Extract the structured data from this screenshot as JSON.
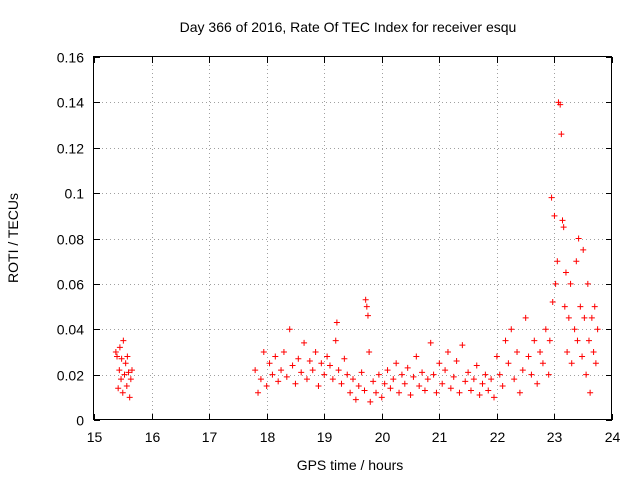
{
  "chart_data": {
    "type": "scatter",
    "title": "Day 366 of 2016, Rate Of TEC Index for receiver esqu",
    "xlabel": "GPS time / hours",
    "ylabel": "ROTI / TECUs",
    "xlim": [
      15,
      24
    ],
    "ylim": [
      0,
      0.16
    ],
    "x_ticks": [
      "15",
      "16",
      "17",
      "18",
      "19",
      "20",
      "21",
      "22",
      "23",
      "24"
    ],
    "y_ticks": [
      "0",
      "0.02",
      "0.04",
      "0.06",
      "0.08",
      "0.1",
      "0.12",
      "0.14",
      "0.16"
    ],
    "grid": true,
    "marker": "+",
    "color": "#ff0000",
    "series": [
      {
        "name": "ROTI",
        "points": [
          [
            15.38,
            0.03
          ],
          [
            15.4,
            0.028
          ],
          [
            15.42,
            0.014
          ],
          [
            15.44,
            0.022
          ],
          [
            15.45,
            0.032
          ],
          [
            15.47,
            0.018
          ],
          [
            15.48,
            0.027
          ],
          [
            15.5,
            0.012
          ],
          [
            15.51,
            0.035
          ],
          [
            15.53,
            0.02
          ],
          [
            15.55,
            0.025
          ],
          [
            15.57,
            0.015
          ],
          [
            15.58,
            0.028
          ],
          [
            15.6,
            0.021
          ],
          [
            15.62,
            0.01
          ],
          [
            15.64,
            0.018
          ],
          [
            15.66,
            0.022
          ],
          [
            17.8,
            0.022
          ],
          [
            17.85,
            0.012
          ],
          [
            17.9,
            0.018
          ],
          [
            17.95,
            0.03
          ],
          [
            18.0,
            0.015
          ],
          [
            18.05,
            0.025
          ],
          [
            18.1,
            0.02
          ],
          [
            18.15,
            0.028
          ],
          [
            18.2,
            0.017
          ],
          [
            18.25,
            0.022
          ],
          [
            18.3,
            0.03
          ],
          [
            18.35,
            0.019
          ],
          [
            18.4,
            0.04
          ],
          [
            18.45,
            0.024
          ],
          [
            18.5,
            0.016
          ],
          [
            18.55,
            0.027
          ],
          [
            18.6,
            0.021
          ],
          [
            18.65,
            0.034
          ],
          [
            18.7,
            0.018
          ],
          [
            18.75,
            0.026
          ],
          [
            18.8,
            0.022
          ],
          [
            18.85,
            0.03
          ],
          [
            18.9,
            0.015
          ],
          [
            18.95,
            0.025
          ],
          [
            19.0,
            0.02
          ],
          [
            19.05,
            0.028
          ],
          [
            19.1,
            0.024
          ],
          [
            19.15,
            0.018
          ],
          [
            19.2,
            0.035
          ],
          [
            19.22,
            0.043
          ],
          [
            19.25,
            0.022
          ],
          [
            19.3,
            0.016
          ],
          [
            19.35,
            0.027
          ],
          [
            19.4,
            0.02
          ],
          [
            19.45,
            0.012
          ],
          [
            19.5,
            0.018
          ],
          [
            19.55,
            0.009
          ],
          [
            19.6,
            0.015
          ],
          [
            19.65,
            0.021
          ],
          [
            19.7,
            0.013
          ],
          [
            19.72,
            0.053
          ],
          [
            19.74,
            0.05
          ],
          [
            19.76,
            0.046
          ],
          [
            19.78,
            0.03
          ],
          [
            19.8,
            0.008
          ],
          [
            19.85,
            0.017
          ],
          [
            19.9,
            0.012
          ],
          [
            19.95,
            0.02
          ],
          [
            20.0,
            0.01
          ],
          [
            20.05,
            0.016
          ],
          [
            20.1,
            0.022
          ],
          [
            20.15,
            0.014
          ],
          [
            20.2,
            0.018
          ],
          [
            20.25,
            0.025
          ],
          [
            20.3,
            0.012
          ],
          [
            20.35,
            0.02
          ],
          [
            20.4,
            0.016
          ],
          [
            20.45,
            0.023
          ],
          [
            20.5,
            0.011
          ],
          [
            20.55,
            0.019
          ],
          [
            20.6,
            0.028
          ],
          [
            20.65,
            0.015
          ],
          [
            20.7,
            0.021
          ],
          [
            20.75,
            0.013
          ],
          [
            20.8,
            0.018
          ],
          [
            20.85,
            0.034
          ],
          [
            20.9,
            0.02
          ],
          [
            20.95,
            0.012
          ],
          [
            21.0,
            0.025
          ],
          [
            21.05,
            0.016
          ],
          [
            21.1,
            0.022
          ],
          [
            21.15,
            0.03
          ],
          [
            21.2,
            0.014
          ],
          [
            21.25,
            0.019
          ],
          [
            21.3,
            0.026
          ],
          [
            21.35,
            0.012
          ],
          [
            21.4,
            0.033
          ],
          [
            21.45,
            0.017
          ],
          [
            21.5,
            0.021
          ],
          [
            21.55,
            0.013
          ],
          [
            21.6,
            0.018
          ],
          [
            21.65,
            0.024
          ],
          [
            21.7,
            0.011
          ],
          [
            21.75,
            0.016
          ],
          [
            21.8,
            0.02
          ],
          [
            21.85,
            0.013
          ],
          [
            21.9,
            0.018
          ],
          [
            21.95,
            0.01
          ],
          [
            22.0,
            0.028
          ],
          [
            22.05,
            0.02
          ],
          [
            22.1,
            0.015
          ],
          [
            22.15,
            0.035
          ],
          [
            22.2,
            0.025
          ],
          [
            22.25,
            0.04
          ],
          [
            22.3,
            0.018
          ],
          [
            22.35,
            0.03
          ],
          [
            22.4,
            0.012
          ],
          [
            22.45,
            0.022
          ],
          [
            22.5,
            0.045
          ],
          [
            22.55,
            0.028
          ],
          [
            22.6,
            0.02
          ],
          [
            22.65,
            0.035
          ],
          [
            22.7,
            0.016
          ],
          [
            22.75,
            0.03
          ],
          [
            22.8,
            0.025
          ],
          [
            22.85,
            0.04
          ],
          [
            22.9,
            0.02
          ],
          [
            22.92,
            0.035
          ],
          [
            22.95,
            0.098
          ],
          [
            22.97,
            0.052
          ],
          [
            23.0,
            0.09
          ],
          [
            23.02,
            0.06
          ],
          [
            23.05,
            0.07
          ],
          [
            23.07,
            0.14
          ],
          [
            23.1,
            0.139
          ],
          [
            23.12,
            0.126
          ],
          [
            23.14,
            0.088
          ],
          [
            23.16,
            0.085
          ],
          [
            23.18,
            0.05
          ],
          [
            23.2,
            0.065
          ],
          [
            23.22,
            0.03
          ],
          [
            23.25,
            0.045
          ],
          [
            23.28,
            0.06
          ],
          [
            23.3,
            0.025
          ],
          [
            23.35,
            0.04
          ],
          [
            23.38,
            0.07
          ],
          [
            23.4,
            0.035
          ],
          [
            23.42,
            0.08
          ],
          [
            23.45,
            0.05
          ],
          [
            23.48,
            0.028
          ],
          [
            23.5,
            0.075
          ],
          [
            23.52,
            0.045
          ],
          [
            23.55,
            0.02
          ],
          [
            23.58,
            0.06
          ],
          [
            23.6,
            0.035
          ],
          [
            23.62,
            0.012
          ],
          [
            23.65,
            0.045
          ],
          [
            23.68,
            0.03
          ],
          [
            23.7,
            0.05
          ],
          [
            23.72,
            0.025
          ],
          [
            23.75,
            0.04
          ]
        ]
      }
    ]
  }
}
